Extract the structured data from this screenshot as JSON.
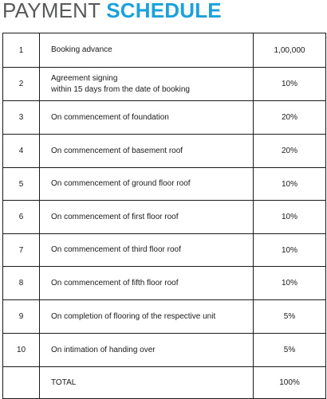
{
  "heading": {
    "light": "PAYMENT",
    "bold": "SCHEDULE"
  },
  "rows": [
    {
      "num": "1",
      "desc": "Booking advance",
      "desc2": "",
      "amount": "1,00,000"
    },
    {
      "num": "2",
      "desc": "Agreement signing",
      "desc2": "within 15 days from the date of booking",
      "amount": "10%"
    },
    {
      "num": "3",
      "desc": "On commencement of foundation",
      "desc2": "",
      "amount": "20%"
    },
    {
      "num": "4",
      "desc": "On commencement of basement roof",
      "desc2": "",
      "amount": "20%"
    },
    {
      "num": "5",
      "desc": "On commencement of ground floor roof",
      "desc2": "",
      "amount": "10%"
    },
    {
      "num": "6",
      "desc": "On commencement of first floor roof",
      "desc2": "",
      "amount": "10%"
    },
    {
      "num": "7",
      "desc": "On commencement of third floor roof",
      "desc2": "",
      "amount": "10%"
    },
    {
      "num": "8",
      "desc": "On commencement of fifth floor roof",
      "desc2": "",
      "amount": "10%"
    },
    {
      "num": "9",
      "desc": "On completion of flooring of the respective unit",
      "desc2": "",
      "amount": "5%"
    },
    {
      "num": "10",
      "desc": "On intimation of handing over",
      "desc2": "",
      "amount": "5%"
    },
    {
      "num": "",
      "desc": "TOTAL",
      "desc2": "",
      "amount": "100%"
    }
  ]
}
